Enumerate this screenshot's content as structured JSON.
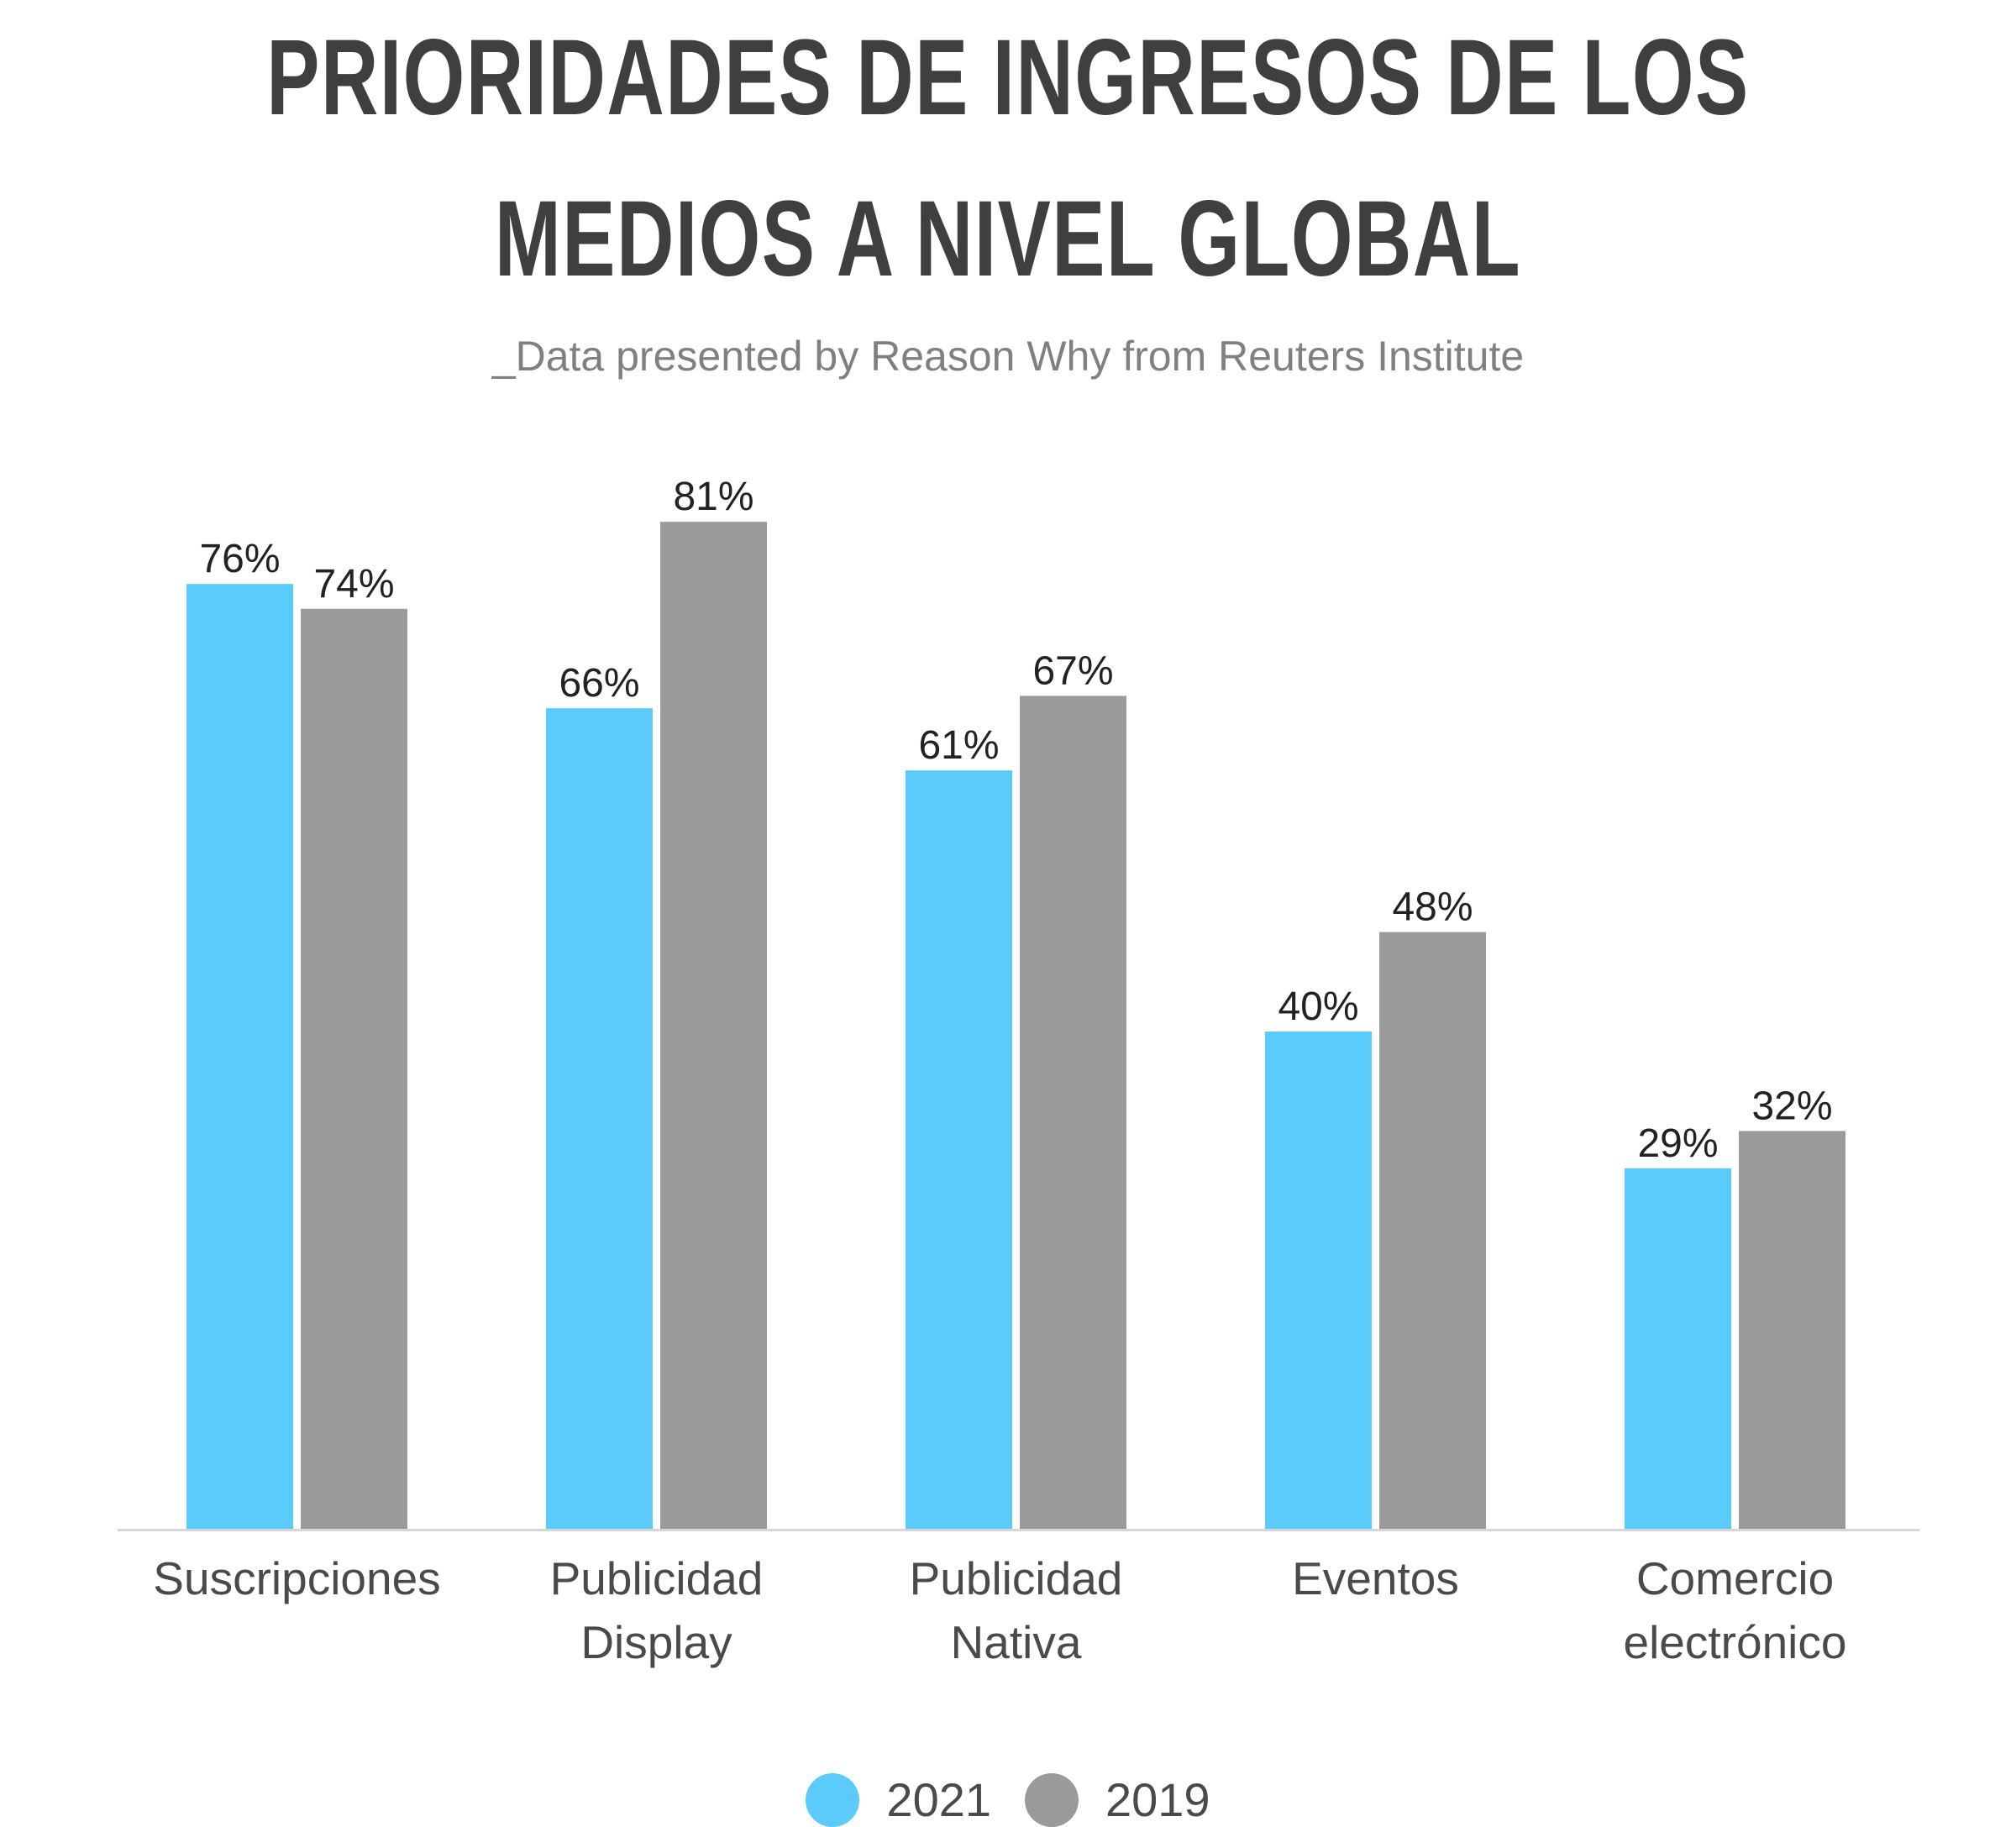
{
  "chart_data": {
    "type": "bar",
    "title_lines": [
      "PRIORIDADES DE INGRESOS DE LOS",
      "MEDIOS A NIVEL GLOBAL"
    ],
    "subtitle": "_Data presented by Reason Why from Reuters Institute",
    "categories": [
      [
        "Suscripciones"
      ],
      [
        "Publicidad",
        "Display"
      ],
      [
        "Publicidad",
        "Nativa"
      ],
      [
        "Eventos"
      ],
      [
        "Comercio",
        "electrónico"
      ]
    ],
    "series": [
      {
        "name": "2021",
        "color": "#5BCBFC",
        "values": [
          76,
          66,
          61,
          40,
          29
        ],
        "labels": [
          "76%",
          "66%",
          "61%",
          "40%",
          "29%"
        ]
      },
      {
        "name": "2019",
        "color": "#9A9A9A",
        "values": [
          74,
          81,
          67,
          48,
          32
        ],
        "labels": [
          "74%",
          "81%",
          "67%",
          "48%",
          "32%"
        ]
      }
    ],
    "ylim": [
      0,
      100
    ],
    "grid": false,
    "legend_position": "bottom-center"
  }
}
